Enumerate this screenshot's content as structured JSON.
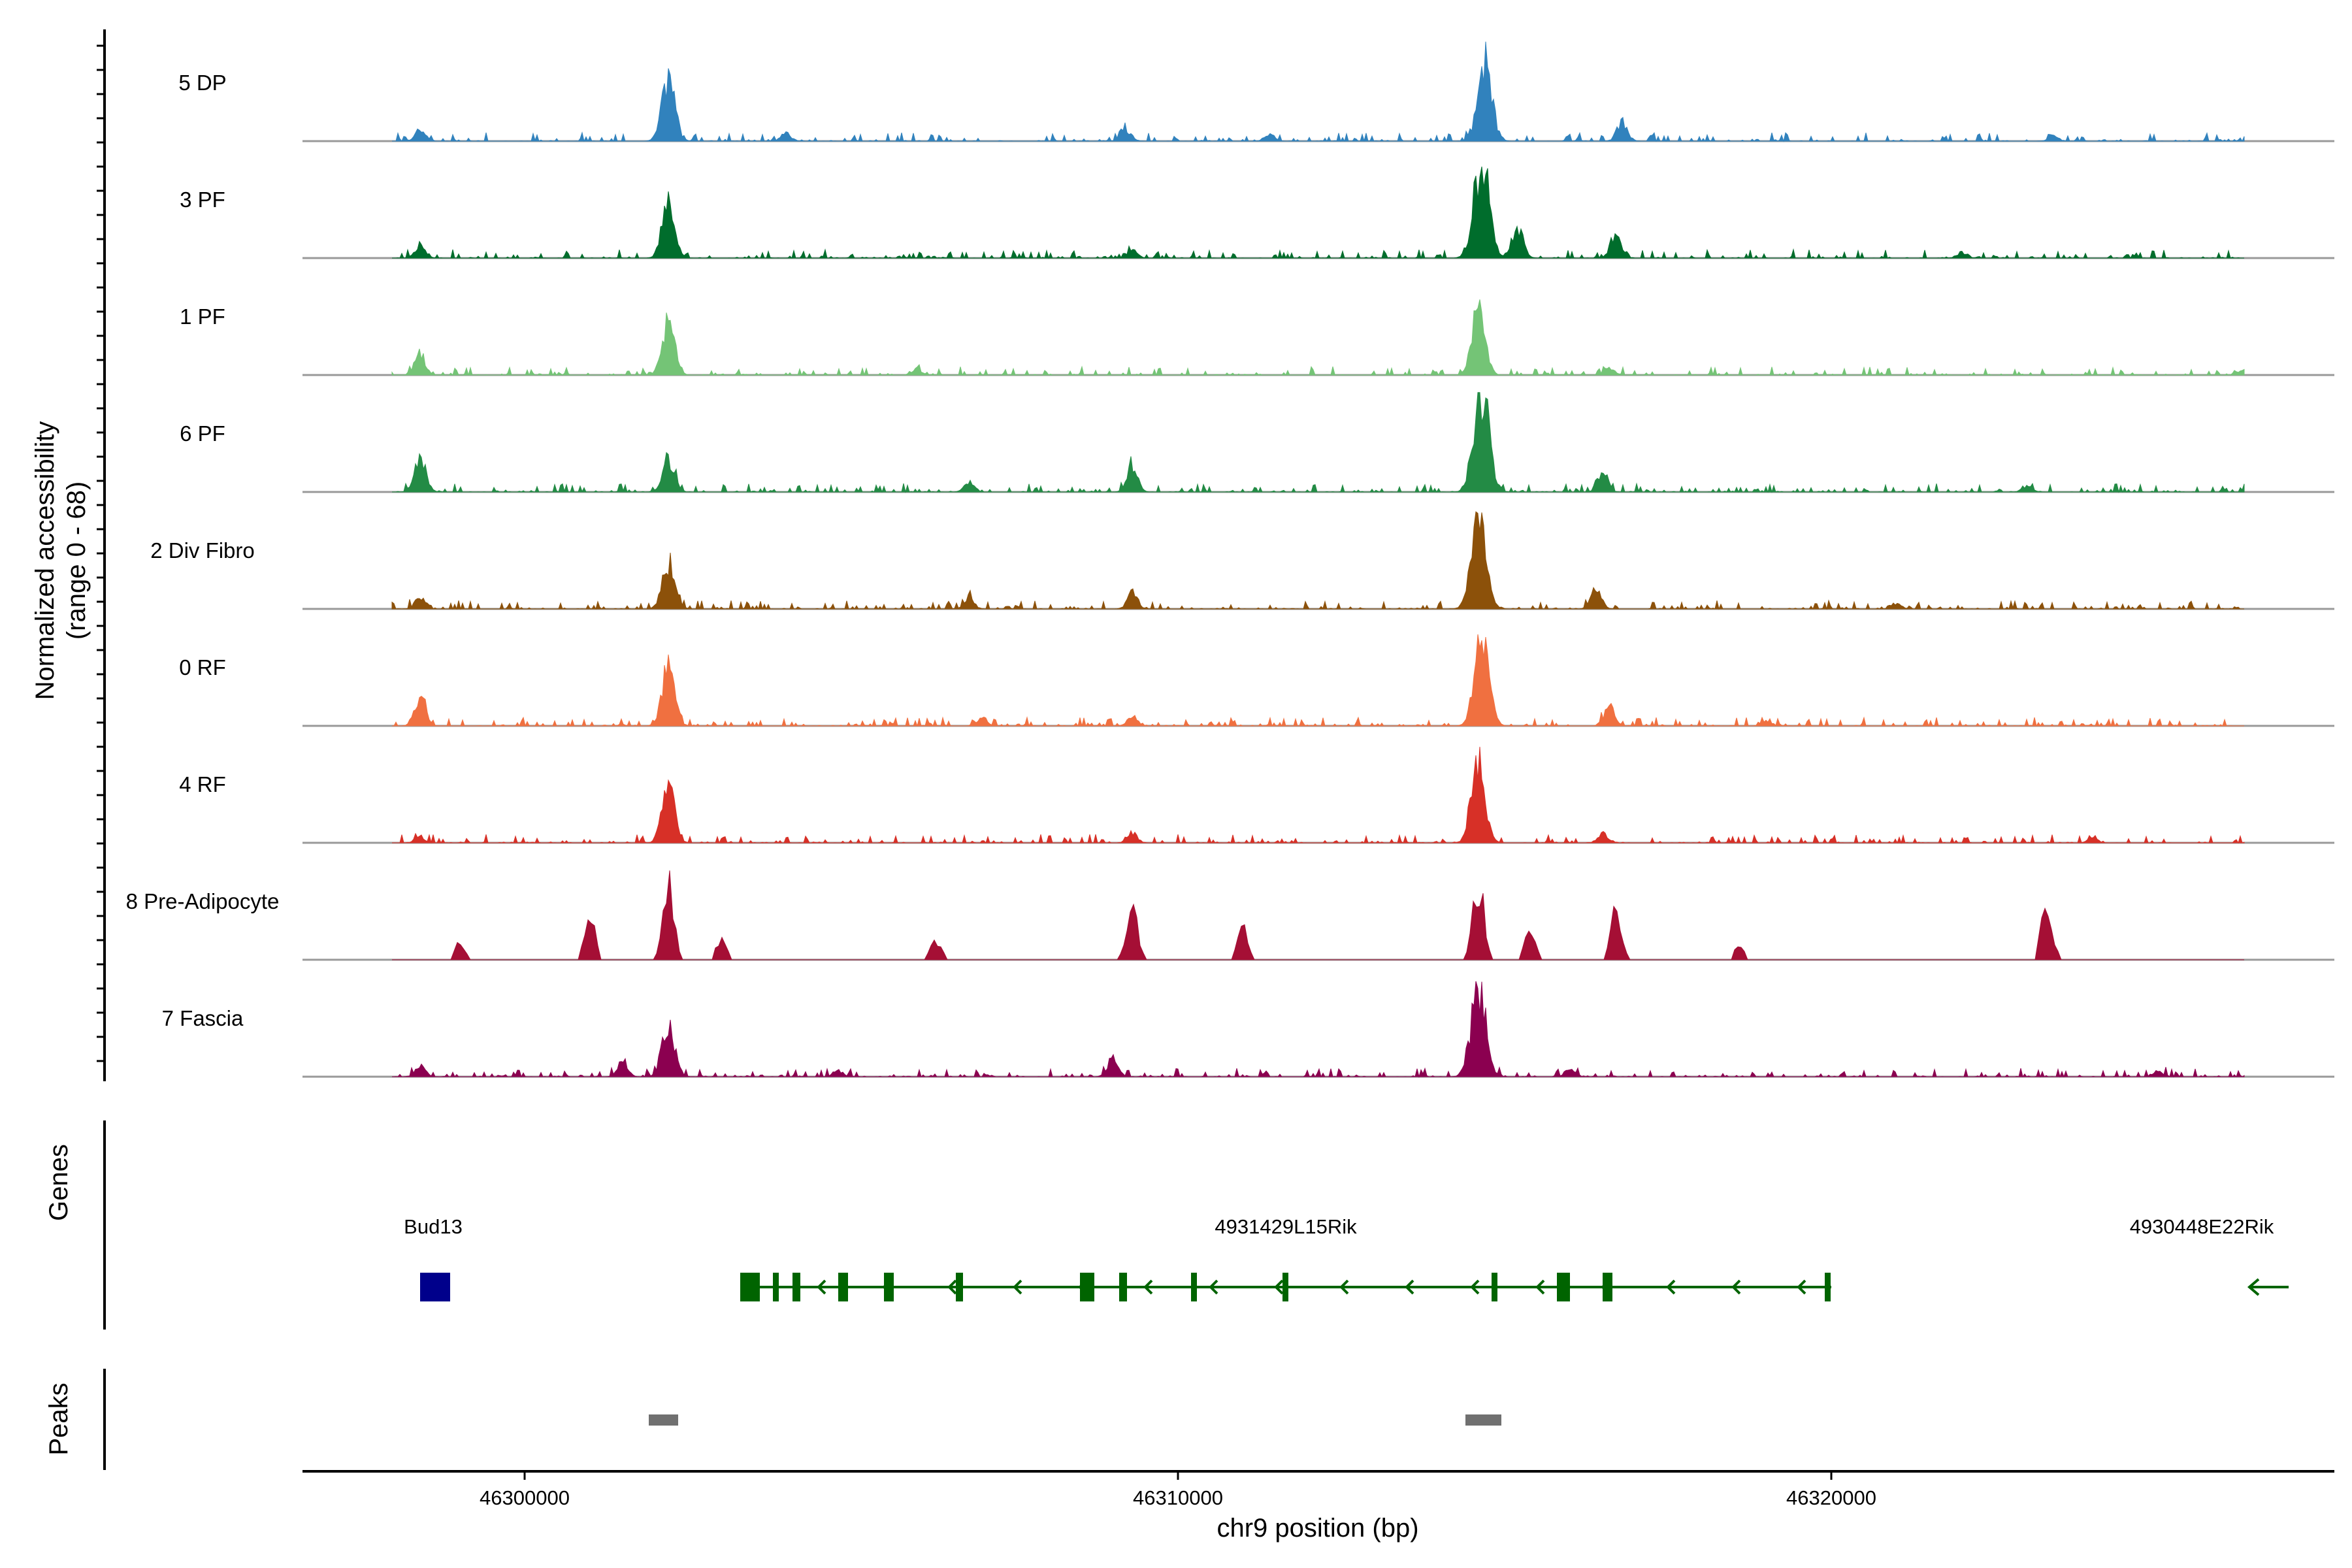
{
  "chart_data": {
    "type": "area",
    "title": "",
    "chromosome": "chr9",
    "xlim": [
      46296600,
      46327700
    ],
    "xlabel": "chr9 position (bp)",
    "ylabel_line1": "Normalized accessibility",
    "ylabel_line2": "(range 0 - 68)",
    "y_range": [
      0,
      68
    ],
    "x_ticks": [
      46300000,
      46310000,
      46320000
    ],
    "x_tick_labels": [
      "46300000",
      "46310000",
      "46320000"
    ],
    "tracks": [
      {
        "name": "5 DP",
        "color": "#3182bd",
        "peaks": [
          [
            46298400,
            0.12
          ],
          [
            46302200,
            0.65
          ],
          [
            46304000,
            0.08
          ],
          [
            46309200,
            0.12
          ],
          [
            46311400,
            0.08
          ],
          [
            46314700,
            0.8
          ],
          [
            46316800,
            0.2
          ],
          [
            46323400,
            0.06
          ]
        ]
      },
      {
        "name": "3 PF",
        "color": "#006d2c",
        "peaks": [
          [
            46298400,
            0.14
          ],
          [
            46302200,
            0.55
          ],
          [
            46309300,
            0.08
          ],
          [
            46314650,
            1.0
          ],
          [
            46315200,
            0.3
          ],
          [
            46316700,
            0.25
          ],
          [
            46322000,
            0.06
          ]
        ]
      },
      {
        "name": "1 PF",
        "color": "#74c476",
        "peaks": [
          [
            46298400,
            0.22
          ],
          [
            46302200,
            0.55
          ],
          [
            46306000,
            0.06
          ],
          [
            46314600,
            0.68
          ],
          [
            46316600,
            0.08
          ],
          [
            46326300,
            0.06
          ]
        ]
      },
      {
        "name": "6 PF",
        "color": "#238b45",
        "peaks": [
          [
            46298400,
            0.36
          ],
          [
            46302200,
            0.35
          ],
          [
            46306800,
            0.1
          ],
          [
            46309300,
            0.25
          ],
          [
            46314650,
            1.03
          ],
          [
            46316500,
            0.2
          ],
          [
            46323000,
            0.06
          ]
        ]
      },
      {
        "name": "2 Div Fibro",
        "color": "#8c510a",
        "peaks": [
          [
            46298400,
            0.12
          ],
          [
            46302200,
            0.5
          ],
          [
            46306800,
            0.12
          ],
          [
            46309300,
            0.15
          ],
          [
            46314600,
            0.95
          ],
          [
            46316400,
            0.2
          ],
          [
            46321000,
            0.06
          ]
        ]
      },
      {
        "name": "0 RF",
        "color": "#f07040",
        "peaks": [
          [
            46298400,
            0.28
          ],
          [
            46302200,
            0.6
          ],
          [
            46307000,
            0.08
          ],
          [
            46309300,
            0.1
          ],
          [
            46314650,
            0.9
          ],
          [
            46316600,
            0.2
          ],
          [
            46319000,
            0.05
          ]
        ]
      },
      {
        "name": "4 RF",
        "color": "#d73027",
        "peaks": [
          [
            46298400,
            0.06
          ],
          [
            46302200,
            0.58
          ],
          [
            46309300,
            0.1
          ],
          [
            46314600,
            0.8
          ],
          [
            46316500,
            0.1
          ],
          [
            46324000,
            0.05
          ]
        ]
      },
      {
        "name": "8 Pre-Adipocyte",
        "color": "#a50f35",
        "peaks": [
          [
            46299000,
            0.15
          ],
          [
            46301000,
            0.4
          ],
          [
            46302200,
            0.75
          ],
          [
            46303000,
            0.2
          ],
          [
            46306300,
            0.2
          ],
          [
            46309300,
            0.55
          ],
          [
            46311000,
            0.3
          ],
          [
            46314600,
            0.8
          ],
          [
            46315400,
            0.3
          ],
          [
            46316700,
            0.5
          ],
          [
            46318600,
            0.15
          ],
          [
            46323300,
            0.55
          ]
        ]
      },
      {
        "name": "7 Fascia",
        "color": "#8b0050",
        "peaks": [
          [
            46298400,
            0.12
          ],
          [
            46301500,
            0.15
          ],
          [
            46302200,
            0.55
          ],
          [
            46304800,
            0.06
          ],
          [
            46309000,
            0.2
          ],
          [
            46314600,
            0.95
          ],
          [
            46316000,
            0.08
          ],
          [
            46325000,
            0.06
          ]
        ]
      }
    ],
    "genes": [
      {
        "name": "Bud13",
        "start": 46298400,
        "end": 46298800,
        "strand": "-",
        "color": "#00008b"
      },
      {
        "name": "4931429L15Rik",
        "start": 46303300,
        "end": 46320000,
        "strand": "-",
        "color": "#006400"
      },
      {
        "name": "4930448E22Rik",
        "start": 46326400,
        "end": 46327000,
        "strand": "-",
        "color": "#006400"
      }
    ],
    "peaks": [
      [
        46301900,
        46302350
      ],
      [
        46314400,
        46314950
      ]
    ]
  },
  "panels": {
    "genes_label": "Genes",
    "peaks_label": "Peaks"
  }
}
